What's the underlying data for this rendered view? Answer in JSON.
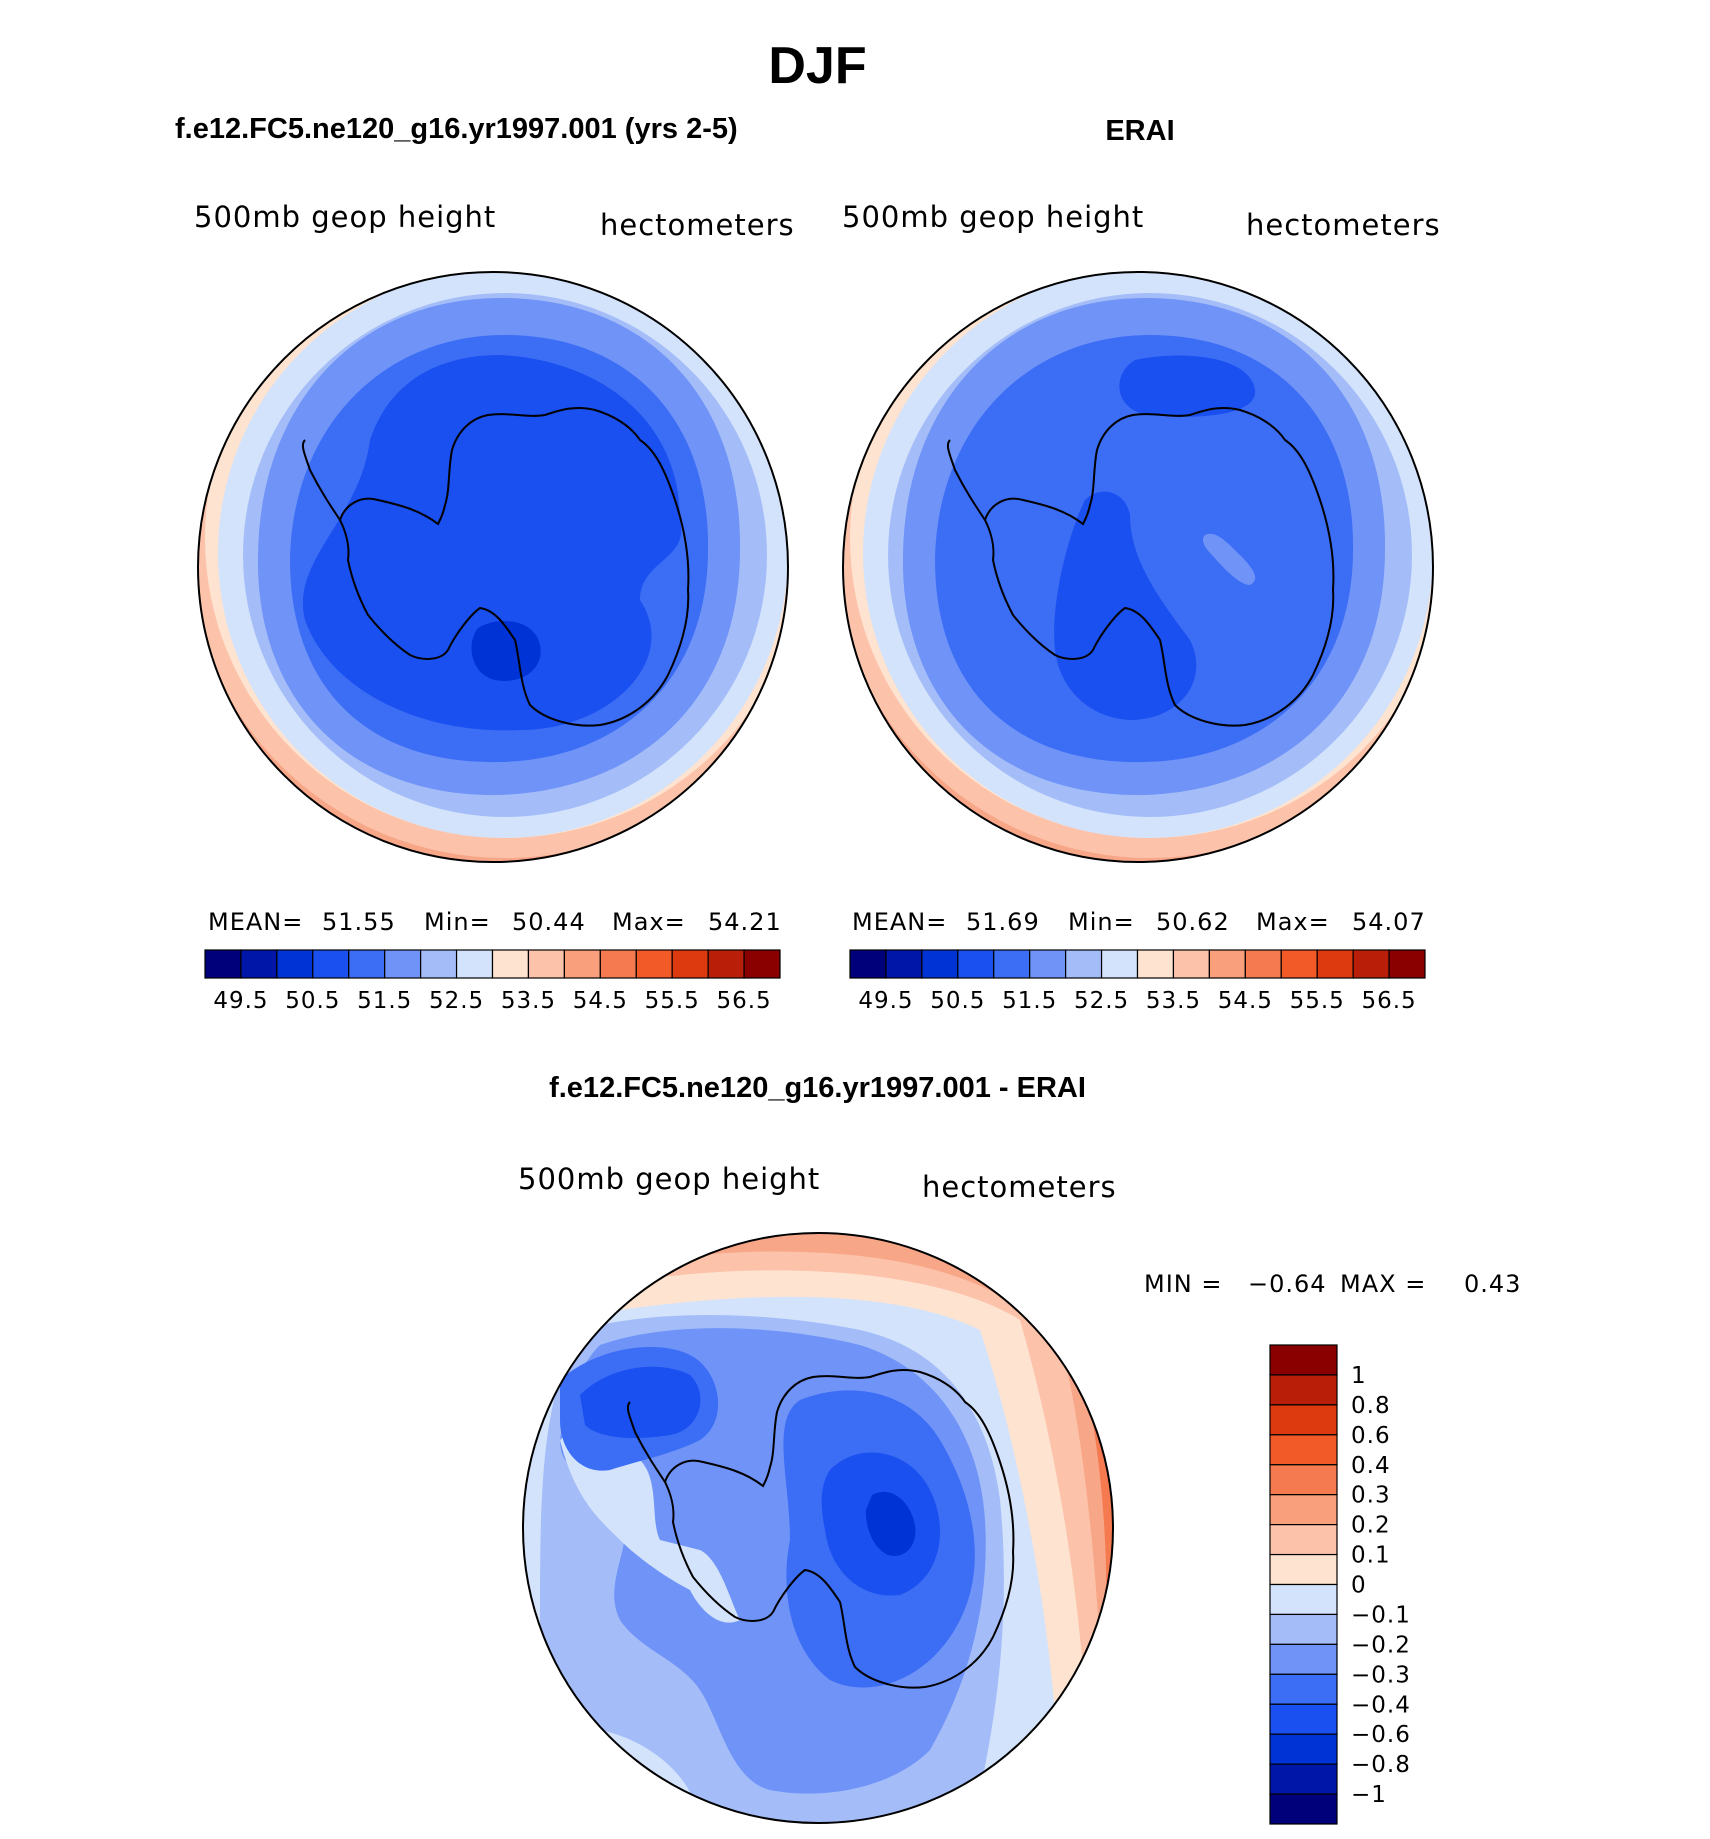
{
  "figure": {
    "title": "DJF"
  },
  "panels": [
    {
      "id": "model",
      "title": "f.e12.FC5.ne120_g16.yr1997.001 (yrs 2-5)",
      "left_label": "500mb geop height",
      "right_label": "hectometers",
      "stats": {
        "mean_label": "MEAN=",
        "mean": "51.55",
        "min_label": "Min=",
        "min": "50.44",
        "max_label": "Max=",
        "max": "54.21"
      }
    },
    {
      "id": "erai",
      "title": "ERAI",
      "left_label": "500mb geop height",
      "right_label": "hectometers",
      "stats": {
        "mean_label": "MEAN=",
        "mean": "51.69",
        "min_label": "Min=",
        "min": "50.62",
        "max_label": "Max=",
        "max": "54.07"
      }
    },
    {
      "id": "difference",
      "title": "f.e12.FC5.ne120_g16.yr1997.001 - ERAI",
      "left_label": "500mb geop height",
      "right_label": "hectometers",
      "stats": {
        "min_label": "MIN =",
        "min": "−0.64",
        "max_label": "MAX =",
        "max": "0.43"
      }
    }
  ],
  "colorbar_main": {
    "colors": [
      "#00007a",
      "#0016a8",
      "#0033d6",
      "#1a4ff0",
      "#3c6df5",
      "#6f93f7",
      "#a4bdf9",
      "#d3e3fb",
      "#fde3d0",
      "#fcc3aa",
      "#f99f7c",
      "#f57a50",
      "#f25a28",
      "#dd3a10",
      "#b81e08",
      "#8a0000"
    ],
    "labels": [
      "49.5",
      "50.5",
      "51.5",
      "52.5",
      "53.5",
      "54.5",
      "55.5",
      "56.5"
    ]
  },
  "colorbar_diff": {
    "colors": [
      "#00007a",
      "#0016a8",
      "#0033d6",
      "#1a4ff0",
      "#3c6df5",
      "#6f93f7",
      "#a4bdf9",
      "#d3e3fb",
      "#fde3d0",
      "#fcc3aa",
      "#f99f7c",
      "#f57a50",
      "#f25a28",
      "#dd3a10",
      "#b81e08",
      "#8a0000"
    ],
    "labels": [
      "1",
      "0.8",
      "0.6",
      "0.4",
      "0.3",
      "0.2",
      "0.1",
      "0",
      "−0.1",
      "−0.2",
      "−0.3",
      "−0.4",
      "−0.6",
      "−0.8",
      "−1"
    ]
  }
}
